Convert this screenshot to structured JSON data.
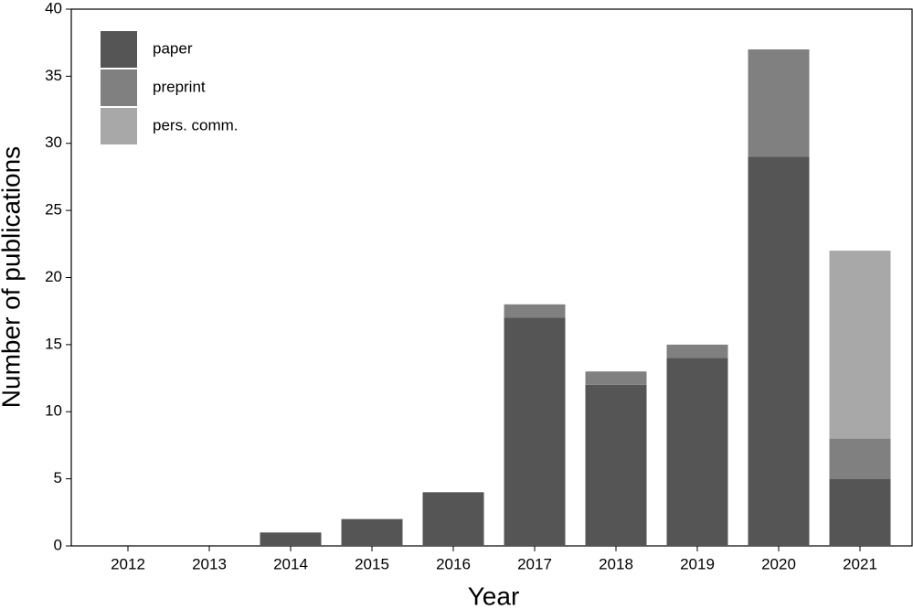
{
  "chart_data": {
    "type": "stacked-bar",
    "x_label": "Year",
    "y_label": "Number of publications",
    "categories": [
      "2012",
      "2013",
      "2014",
      "2015",
      "2016",
      "2017",
      "2018",
      "2019",
      "2020",
      "2021"
    ],
    "series": [
      {
        "name": "paper",
        "color": "#555555",
        "values": [
          0,
          0,
          1,
          2,
          4,
          17,
          12,
          14,
          29,
          5
        ]
      },
      {
        "name": "preprint",
        "color": "#808080",
        "values": [
          0,
          0,
          0,
          0,
          0,
          1,
          1,
          1,
          8,
          3
        ]
      },
      {
        "name": "pers. comm.",
        "color": "#a8a8a8",
        "values": [
          0,
          0,
          0,
          0,
          0,
          0,
          0,
          0,
          0,
          14
        ]
      }
    ],
    "ylim": [
      0,
      40
    ],
    "yticks": [
      0,
      5,
      10,
      15,
      20,
      25,
      30,
      35,
      40
    ],
    "grid": false,
    "legend_position": "upper-left"
  }
}
